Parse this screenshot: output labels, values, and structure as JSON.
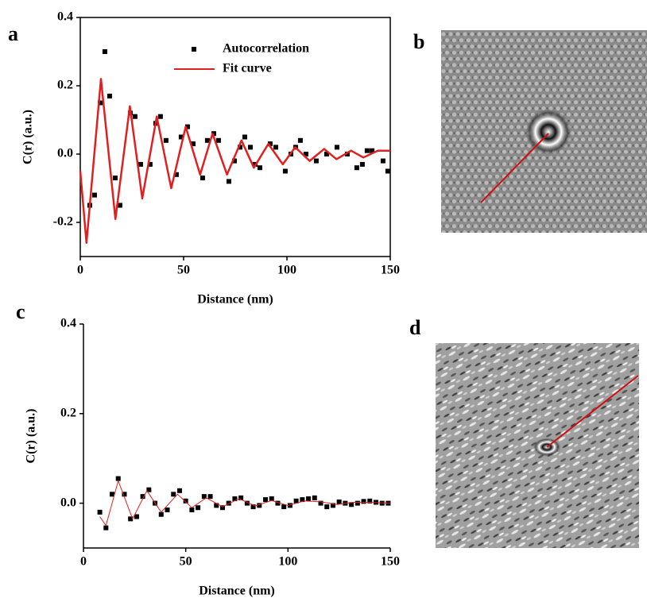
{
  "panel_labels": [
    "a",
    "b",
    "c",
    "d"
  ],
  "chart_data": [
    {
      "type": "scatter",
      "xlabel": "Distance (nm)",
      "ylabel": "C(r) (a.u.)",
      "xlim": [
        0,
        150
      ],
      "ylim": [
        -0.3,
        0.4
      ],
      "xticks": [
        0,
        50,
        100,
        150
      ],
      "yticks": [
        -0.2,
        {
          "value": 0,
          "label": "0.0"
        },
        0.2,
        0.4
      ],
      "frame": true,
      "legend": "top-right",
      "series": [
        {
          "name": "Autocorrelation",
          "type": "scatter",
          "color": "#000000",
          "x": [
            4.6,
            6.9,
            9.6,
            11.9,
            14.2,
            16.9,
            19.2,
            24.2,
            26.5,
            29.2,
            33.8,
            36.5,
            38.8,
            41.5,
            46.5,
            48.8,
            51.9,
            54.6,
            59.2,
            61.5,
            64.6,
            66.9,
            71.9,
            74.6,
            77.3,
            79.6,
            82.3,
            84.6,
            86.9,
            91.9,
            94.6,
            99.2,
            101.9,
            104.2,
            106.5,
            109.2,
            114.2,
            119.2,
            124.2,
            129.2,
            133.8,
            136.5,
            138.8,
            141.2,
            146.5,
            148.8
          ],
          "values": [
            -0.15,
            -0.12,
            0.15,
            0.3,
            0.17,
            -0.07,
            -0.15,
            0.12,
            0.11,
            -0.03,
            -0.03,
            0.09,
            0.11,
            0.04,
            -0.06,
            0.05,
            0.08,
            0.03,
            -0.07,
            0.04,
            0.06,
            0.04,
            -0.08,
            -0.02,
            0.02,
            0.05,
            0.02,
            -0.03,
            -0.04,
            0.03,
            0.02,
            -0.05,
            0,
            0.02,
            0.04,
            0,
            -0.02,
            0,
            0.02,
            0,
            -0.04,
            -0.03,
            0.01,
            0.01,
            -0.02,
            -0.05
          ]
        },
        {
          "name": "Fit curve",
          "type": "line",
          "color": "#e02020",
          "x": [
            0,
            3,
            10,
            17,
            24,
            30,
            37,
            44,
            51,
            58,
            64,
            71,
            78,
            84,
            91,
            98,
            104,
            111,
            118,
            124,
            131,
            137,
            144,
            150
          ],
          "values": [
            -0.05,
            -0.26,
            0.22,
            -0.19,
            0.14,
            -0.13,
            0.11,
            -0.1,
            0.08,
            -0.06,
            0.06,
            -0.06,
            0.04,
            -0.04,
            0.03,
            -0.03,
            0.02,
            -0.02,
            0.015,
            -0.015,
            0.01,
            -0.01,
            0.01,
            0.01
          ]
        }
      ]
    },
    {
      "type": "scatter",
      "xlabel": "Distance (nm)",
      "ylabel": "C(r) (a.u.)",
      "xlim": [
        0,
        150
      ],
      "ylim": [
        -0.1,
        0.4
      ],
      "xticks": [
        0,
        50,
        100,
        150
      ],
      "yticks": [
        {
          "value": 0,
          "label": "0.0"
        },
        0.2,
        0.4
      ],
      "frame": false,
      "series": [
        {
          "name": null,
          "type": "scatter",
          "color": "#000000",
          "x": [
            8,
            11,
            14,
            17,
            20,
            23,
            26,
            29,
            32,
            35,
            38,
            41,
            44,
            47,
            50,
            53,
            56,
            59,
            62,
            65,
            68,
            71,
            74,
            77,
            80,
            83,
            86,
            89,
            92,
            95,
            98,
            101,
            104,
            107,
            110,
            113,
            116,
            119,
            122,
            125,
            128,
            131,
            134,
            137,
            140,
            143,
            146,
            149
          ],
          "values": [
            -0.02,
            -0.055,
            0.02,
            0.055,
            0.02,
            -0.035,
            -0.03,
            0.015,
            0.03,
            0,
            -0.025,
            -0.015,
            0.02,
            0.028,
            0.005,
            -0.015,
            -0.01,
            0.015,
            0.015,
            -0.005,
            -0.01,
            0,
            0.01,
            0.012,
            0,
            -0.008,
            -0.005,
            0.008,
            0.01,
            0,
            -0.008,
            -0.005,
            0.005,
            0.008,
            0.01,
            0.012,
            0,
            -0.008,
            -0.005,
            0.003,
            0,
            -0.003,
            0,
            0.004,
            0.005,
            0.002,
            0,
            0
          ]
        },
        {
          "name": null,
          "type": "line",
          "color": "#e02020",
          "x": [
            8,
            11,
            17,
            24,
            31,
            38,
            46,
            53,
            60,
            68,
            76,
            84,
            92,
            100,
            108,
            116,
            124,
            132,
            140,
            150
          ],
          "values": [
            -0.03,
            -0.05,
            0.05,
            -0.035,
            0.028,
            -0.02,
            0.02,
            -0.01,
            0.012,
            -0.008,
            0.01,
            -0.006,
            0.006,
            -0.005,
            0.005,
            0.003,
            -0.003,
            0.002,
            0.002,
            0
          ]
        }
      ]
    }
  ]
}
